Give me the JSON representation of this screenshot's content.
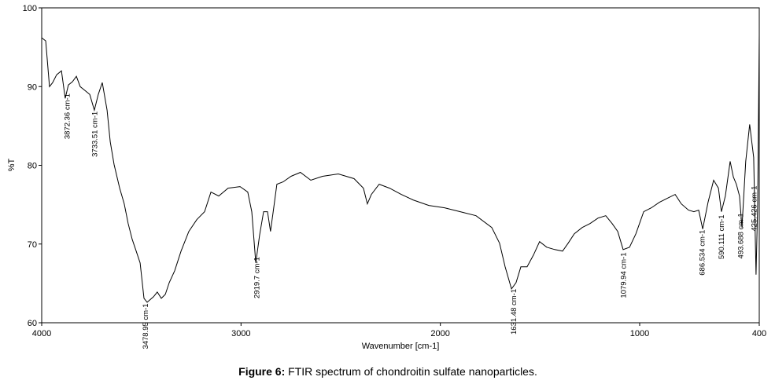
{
  "chart_data": {
    "type": "line",
    "caption_label": "Figure 6:",
    "caption": "FTIR spectrum of chondroitin sulfate nanoparticles.",
    "xlabel": "Wavenumber [cm-1]",
    "ylabel": "%T",
    "xlim": [
      4000,
      400
    ],
    "ylim": [
      60,
      100
    ],
    "xticks": [
      4000,
      3000,
      2000,
      1000,
      400
    ],
    "yticks": [
      60,
      70,
      80,
      90,
      100
    ],
    "color": "#000000",
    "x": [
      4000,
      3980,
      3961,
      3945,
      3925,
      3901,
      3882,
      3866,
      3846,
      3826,
      3807,
      3783,
      3759,
      3736,
      3716,
      3696,
      3672,
      3656,
      3637,
      3609,
      3586,
      3566,
      3546,
      3526,
      3506,
      3487,
      3471,
      3439,
      3420,
      3400,
      3380,
      3360,
      3333,
      3301,
      3262,
      3222,
      3183,
      3151,
      3112,
      3065,
      3005,
      2966,
      2946,
      2926,
      2907,
      2887,
      2867,
      2852,
      2836,
      2820,
      2789,
      2749,
      2702,
      2650,
      2591,
      2512,
      2433,
      2386,
      2366,
      2346,
      2307,
      2255,
      2196,
      2137,
      2058,
      1979,
      1900,
      1821,
      1742,
      1703,
      1675,
      1643,
      1620,
      1596,
      1565,
      1533,
      1502,
      1466,
      1426,
      1387,
      1359,
      1328,
      1288,
      1249,
      1209,
      1170,
      1138,
      1110,
      1083,
      1051,
      1019,
      980,
      941,
      901,
      862,
      822,
      791,
      755,
      728,
      704,
      684,
      657,
      629,
      605,
      590,
      570,
      546,
      530,
      515,
      499,
      487,
      468,
      448,
      428,
      416,
      408,
      400
    ],
    "values": [
      96.2,
      95.8,
      90.0,
      90.5,
      91.5,
      92.0,
      88.5,
      90.2,
      90.6,
      91.3,
      90.0,
      89.5,
      89.0,
      87.0,
      89.0,
      90.5,
      87.0,
      83.0,
      80.1,
      77.1,
      75.1,
      72.6,
      70.6,
      69.1,
      67.6,
      63.1,
      62.6,
      63.3,
      63.9,
      63.1,
      63.6,
      65.1,
      66.6,
      69.1,
      71.6,
      73.1,
      74.1,
      76.6,
      76.1,
      77.1,
      77.3,
      76.6,
      74.1,
      67.6,
      71.1,
      74.1,
      74.1,
      71.6,
      74.6,
      77.6,
      77.9,
      78.6,
      79.1,
      78.1,
      78.6,
      78.9,
      78.3,
      77.1,
      75.1,
      76.3,
      77.6,
      77.1,
      76.3,
      75.6,
      74.9,
      74.6,
      74.1,
      73.6,
      72.1,
      70.1,
      67.1,
      64.3,
      65.1,
      67.1,
      67.1,
      68.6,
      70.3,
      69.6,
      69.3,
      69.1,
      70.1,
      71.3,
      72.1,
      72.6,
      73.3,
      73.6,
      72.6,
      71.6,
      69.3,
      69.6,
      71.3,
      74.1,
      74.6,
      75.3,
      75.8,
      76.3,
      75.1,
      74.3,
      74.1,
      74.3,
      71.9,
      75.3,
      78.1,
      77.1,
      74.1,
      76.1,
      80.5,
      78.5,
      77.6,
      76.1,
      72.1,
      80.5,
      85.2,
      81.0,
      66.1,
      75.1,
      96.5
    ],
    "annotations": [
      {
        "x": 3872.36,
        "text": "3872.36 cm-1"
      },
      {
        "x": 3733.51,
        "text": "3733.51 cm-1"
      },
      {
        "x": 3478.95,
        "text": "3478.95 cm-1"
      },
      {
        "x": 2919.7,
        "text": "2919.7 cm-1"
      },
      {
        "x": 1631.48,
        "text": "1631.48 cm-1"
      },
      {
        "x": 1079.94,
        "text": "1079.94 cm-1"
      },
      {
        "x": 686.534,
        "text": "686.534 cm-1"
      },
      {
        "x": 590.111,
        "text": "590.111 cm-1"
      },
      {
        "x": 493.688,
        "text": "493.688 cm-1"
      },
      {
        "x": 425.426,
        "text": "425.426 cm-1"
      }
    ]
  }
}
